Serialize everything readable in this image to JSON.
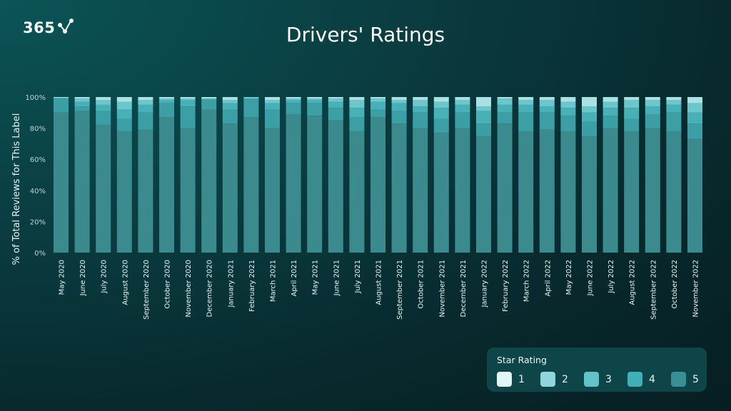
{
  "logo": {
    "text": "365",
    "icon": "check-nodes-icon"
  },
  "chart_data": {
    "type": "bar",
    "stacked": true,
    "title": "Drivers' Ratings",
    "xlabel": "",
    "ylabel": "% of Total Reviews for This Label",
    "ylim": [
      0,
      100
    ],
    "yticks": [
      0,
      20,
      40,
      60,
      80,
      100
    ],
    "ytick_labels": [
      "0%",
      "20%",
      "40%",
      "60%",
      "80%",
      "100%"
    ],
    "grid": false,
    "legend": {
      "title": "Star Rating",
      "placement": "bottom-right"
    },
    "categories": [
      "May 2020",
      "June 2020",
      "July 2020",
      "August 2020",
      "September 2020",
      "October 2020",
      "November 2020",
      "December 2020",
      "January 2021",
      "February 2021",
      "March 2021",
      "April 2021",
      "May 2021",
      "June 2021",
      "July 2021",
      "August 2021",
      "September 2021",
      "October 2021",
      "November 2021",
      "December 2021",
      "January 2022",
      "February 2022",
      "March 2022",
      "April 2022",
      "May 2022",
      "June 2022",
      "July 2022",
      "August 2022",
      "September 2022",
      "October 2022",
      "November 2022"
    ],
    "series": [
      {
        "name": "5",
        "color": "#3a8a8e",
        "values": [
          90,
          91,
          82,
          78,
          79,
          87,
          80,
          92,
          83,
          87,
          80,
          89,
          88,
          85,
          78,
          87,
          83,
          80,
          77,
          80,
          75,
          83,
          78,
          79,
          78,
          75,
          80,
          78,
          80,
          78,
          73
        ]
      },
      {
        "name": "4",
        "color": "#3c9fa5",
        "values": [
          9,
          3,
          9,
          8,
          11,
          9,
          14,
          6,
          9,
          12,
          12,
          7,
          8,
          8,
          9,
          5,
          8,
          10,
          9,
          10,
          8,
          7,
          12,
          11,
          10,
          9,
          8,
          8,
          9,
          12,
          10
        ]
      },
      {
        "name": "3",
        "color": "#47b1b7",
        "values": [
          0.5,
          3,
          4,
          6,
          5,
          2,
          4,
          1,
          4,
          0,
          4,
          2,
          2,
          4,
          6,
          5,
          5,
          4,
          7,
          5,
          8,
          5,
          5,
          4,
          5,
          6,
          5,
          7,
          5,
          5,
          7
        ]
      },
      {
        "name": "2",
        "color": "#6cc7cd",
        "values": [
          0,
          2,
          3,
          5,
          3,
          1,
          1,
          0,
          2,
          1,
          2,
          1,
          1,
          2,
          5,
          2,
          2,
          4,
          4,
          3,
          3,
          4,
          3,
          4,
          4,
          4,
          4,
          5,
          4,
          3,
          6
        ]
      },
      {
        "name": "1",
        "color": "#a9e1e5",
        "values": [
          0.5,
          1,
          2,
          3,
          2,
          1,
          1,
          1,
          2,
          0,
          2,
          1,
          1,
          1,
          2,
          1,
          2,
          2,
          3,
          2,
          6,
          1,
          2,
          2,
          3,
          6,
          3,
          2,
          2,
          2,
          4
        ]
      }
    ]
  },
  "legend_colors": {
    "1": "#e0f6f7",
    "2": "#8fd6dc",
    "3": "#5fc3c8",
    "4": "#40b0b6",
    "5": "#3a8f96"
  }
}
